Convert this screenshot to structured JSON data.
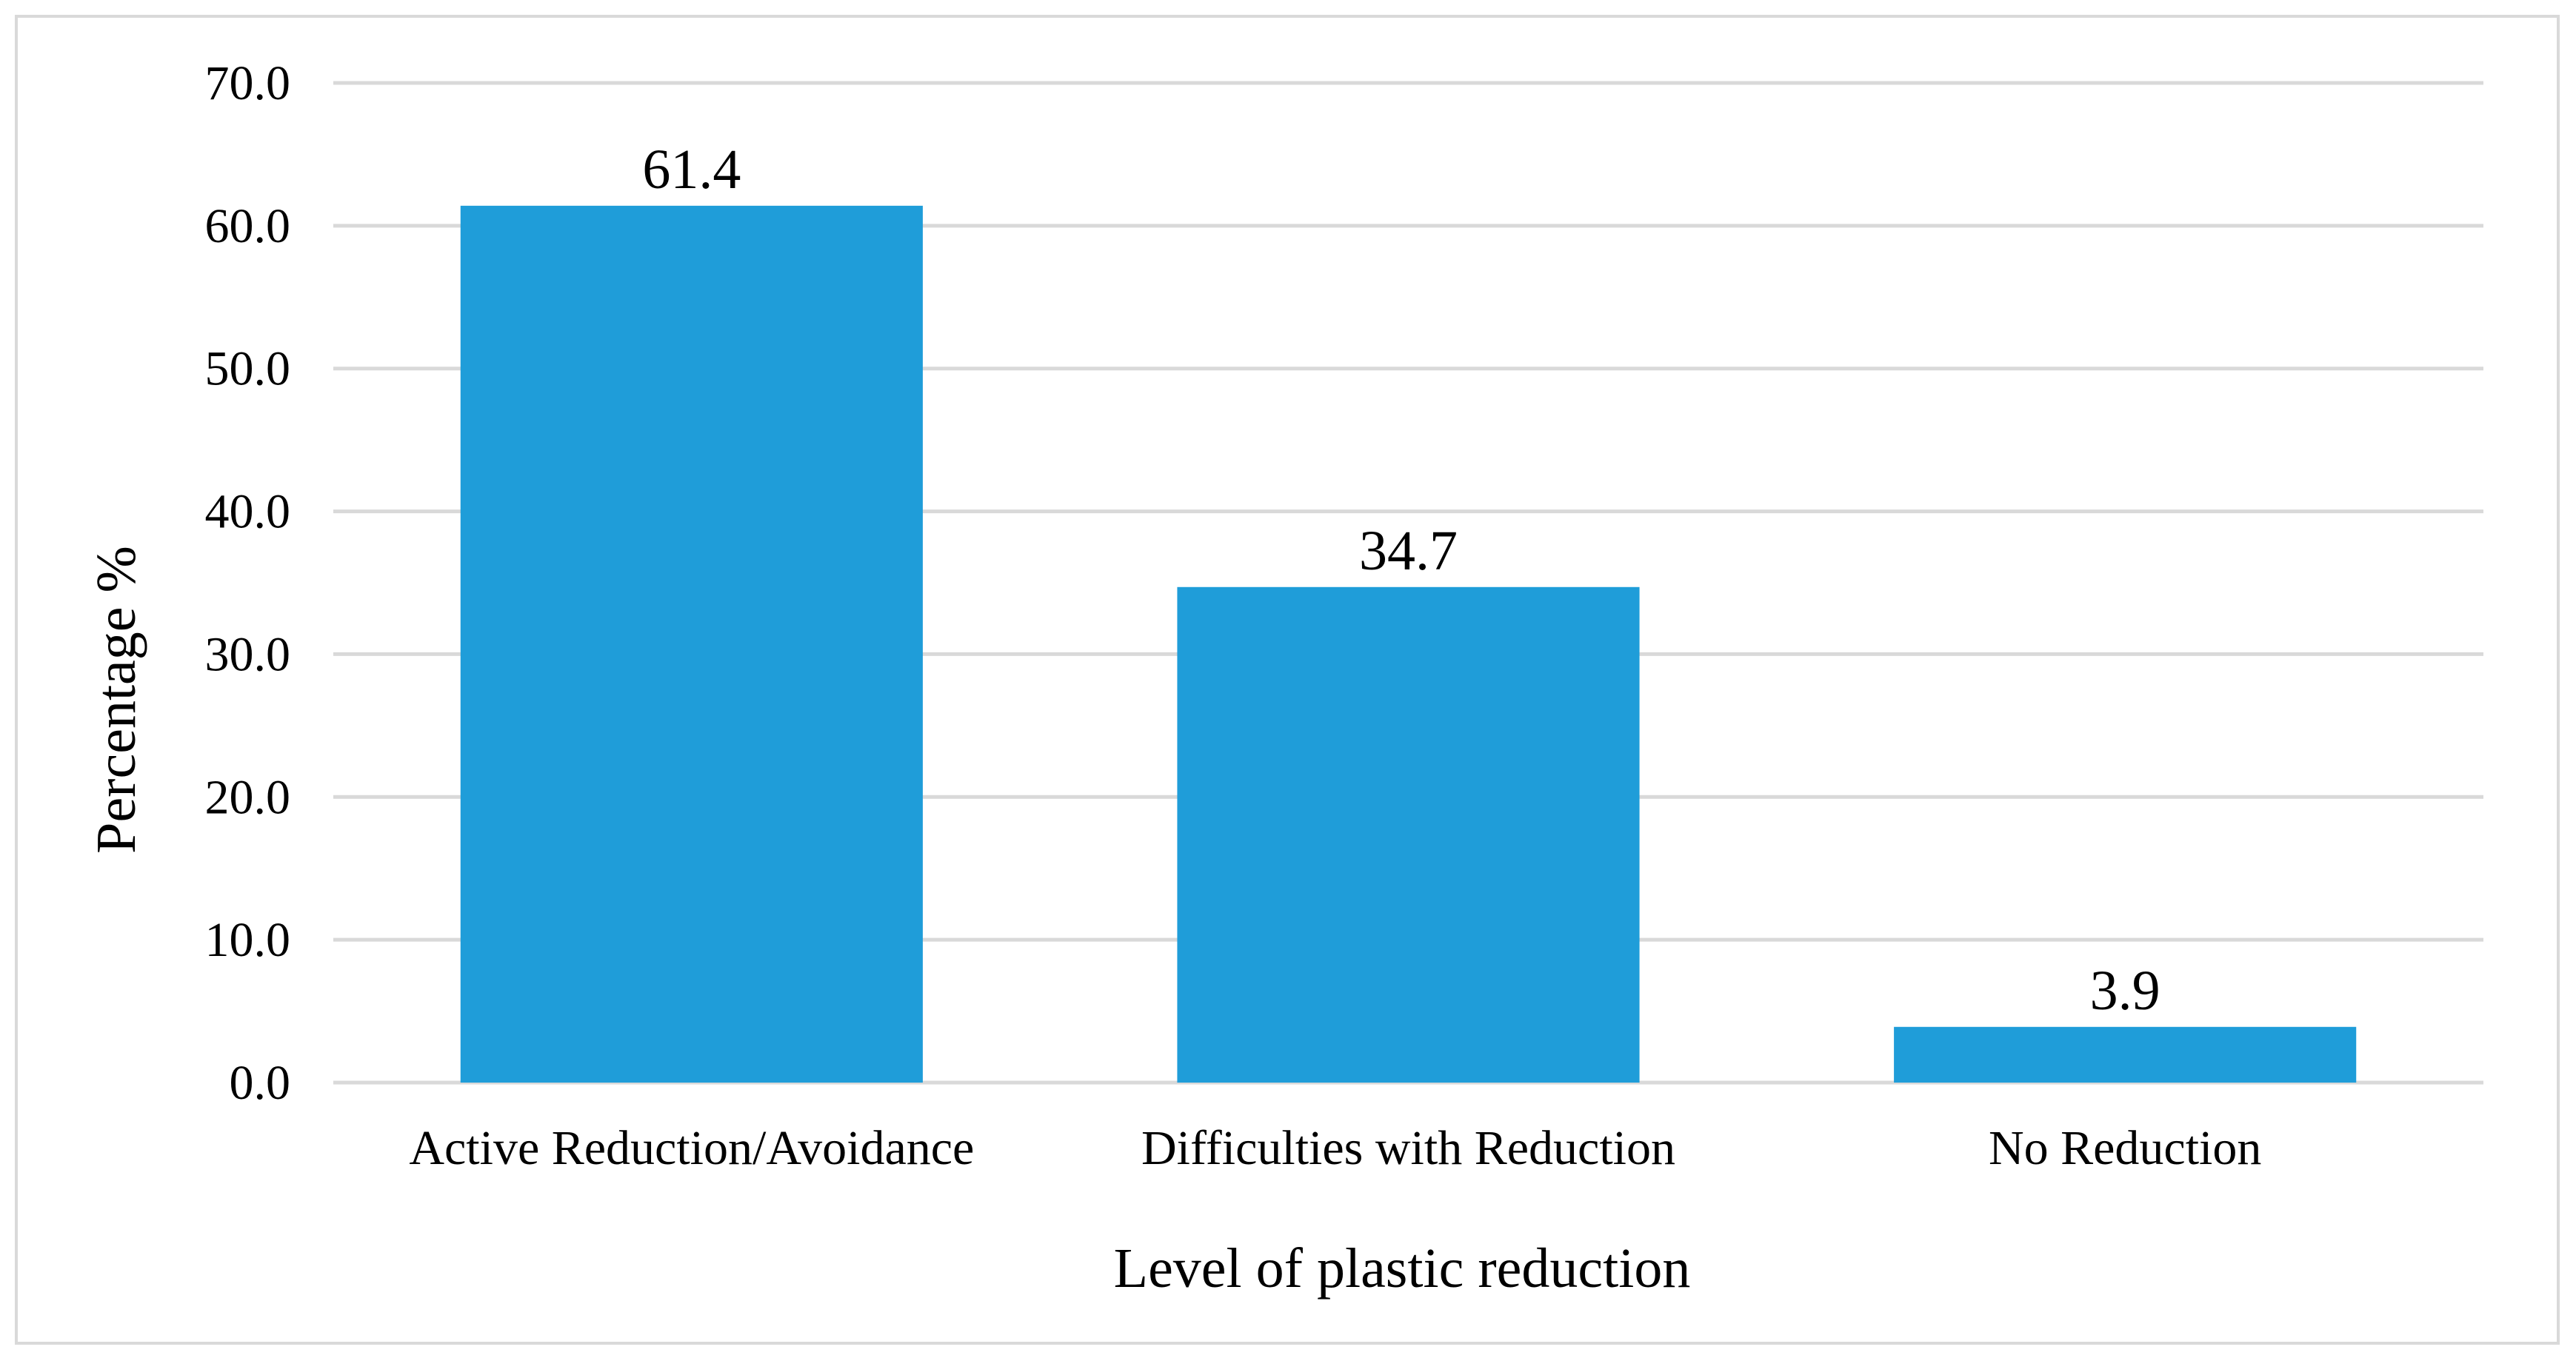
{
  "chart_data": {
    "type": "bar",
    "title": "",
    "categories": [
      "Active Reduction/Avoidance",
      "Difficulties with Reduction",
      "No Reduction"
    ],
    "values": [
      61.4,
      34.7,
      3.9
    ],
    "data_labels": [
      "61.4",
      "34.7",
      "3.9"
    ],
    "xlabel": "Level of plastic reduction",
    "ylabel": "Percentage %",
    "ylim": [
      0,
      70
    ],
    "yticks": [
      0,
      10,
      20,
      30,
      40,
      50,
      60,
      70
    ],
    "ytick_labels": [
      "0.0",
      "10.0",
      "20.0",
      "30.0",
      "40.0",
      "50.0",
      "60.0",
      "70.0"
    ],
    "grid": true,
    "legend": "none",
    "bar_color": "#1f9dd9"
  }
}
